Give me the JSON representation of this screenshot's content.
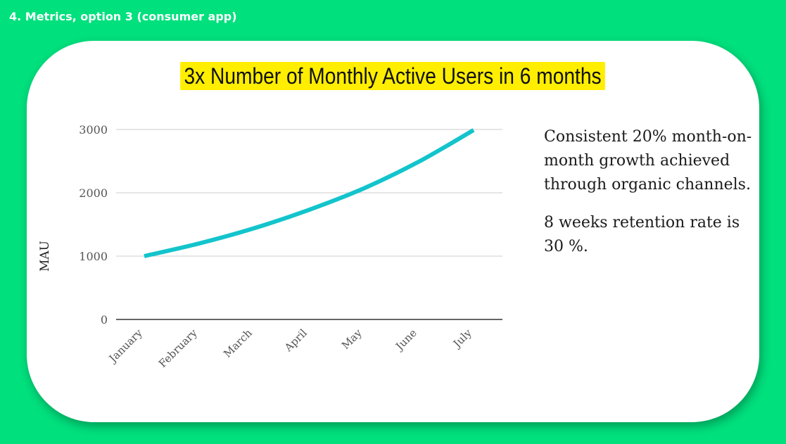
{
  "slide_label": "4. Metrics, option 3 (consumer app)",
  "title": "3x Number of Monthly Active Users in 6 months",
  "side_text": [
    "Consistent 20% month-on-month growth achieved through organic channels.",
    "8 weeks retention rate is 30 %."
  ],
  "colors": {
    "background": "#00e07d",
    "card": "#ffffff",
    "title_highlight": "#ffee00",
    "line": "#13c4cc",
    "grid": "#cccccc"
  },
  "chart_data": {
    "type": "line",
    "categories": [
      "January",
      "February",
      "March",
      "April",
      "May",
      "June",
      "July"
    ],
    "series": [
      {
        "values": [
          1000,
          1200,
          1440,
          1730,
          2070,
          2490,
          2990
        ]
      }
    ],
    "title": "",
    "xlabel": "",
    "ylabel": "MAU",
    "ylim": [
      0,
      3000
    ],
    "yticks": [
      "0",
      "1000",
      "2000",
      "3000"
    ],
    "grid": true,
    "legend": "none"
  }
}
